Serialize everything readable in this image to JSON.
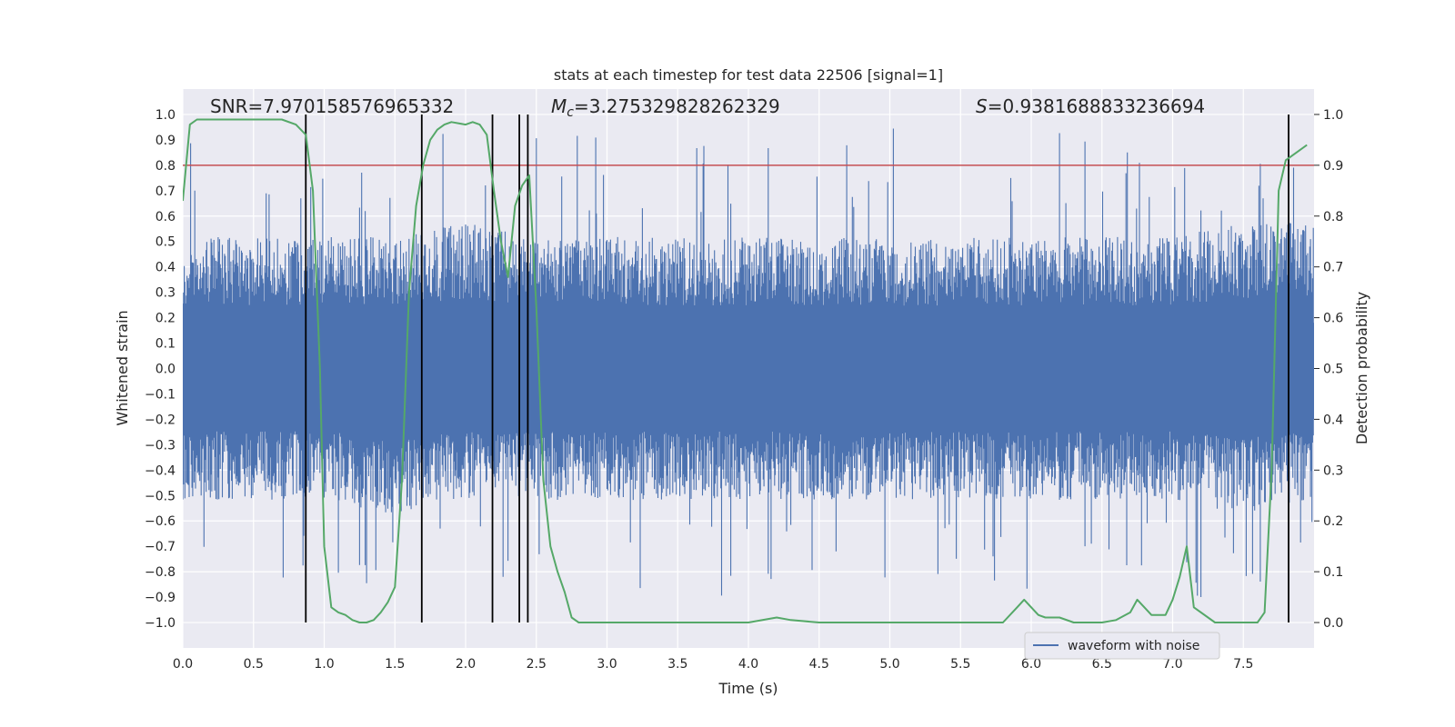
{
  "chart_data": {
    "type": "line",
    "title": "stats at each timestep for test data 22506 [signal=1]",
    "xlabel": "Time (s)",
    "ylabel_left": "Whitened strain",
    "ylabel_right": "Detection probability",
    "xlim": [
      0.0,
      8.0
    ],
    "ylim_left": [
      -1.1,
      1.1
    ],
    "ylim_right": [
      -0.05,
      1.05
    ],
    "xticks": [
      "0.0",
      "0.5",
      "1.0",
      "1.5",
      "2.0",
      "2.5",
      "3.0",
      "3.5",
      "4.0",
      "4.5",
      "5.0",
      "5.5",
      "6.0",
      "6.5",
      "7.0",
      "7.5"
    ],
    "yticks_left": [
      "1.0",
      "0.9",
      "0.8",
      "0.7",
      "0.6",
      "0.5",
      "0.4",
      "0.3",
      "0.2",
      "0.1",
      "0.0",
      "-0.1",
      "-0.2",
      "-0.3",
      "-0.4",
      "-0.5",
      "-0.6",
      "-0.7",
      "-0.8",
      "-0.9",
      "-1.0"
    ],
    "yticks_right": [
      "1.0",
      "0.9",
      "0.8",
      "0.7",
      "0.6",
      "0.5",
      "0.4",
      "0.3",
      "0.2",
      "0.1",
      "0.0"
    ],
    "grid": true,
    "annotations": {
      "snr": "SNR=7.970158576965332",
      "mc": "M",
      "mc_sub": "c",
      "mc_value": "=3.275329828262329",
      "s": "S",
      "s_value": "=0.9381688833236694"
    },
    "legend": {
      "label": "waveform with noise",
      "placement": "lower-right"
    },
    "threshold_right": 0.9,
    "detection_lines_x": [
      0.87,
      1.69,
      2.19,
      2.38,
      2.44,
      7.82
    ],
    "waveform_envelope": {
      "x": [
        0.0,
        0.5,
        1.0,
        1.5,
        2.0,
        2.5,
        3.0,
        3.5,
        4.0,
        4.5,
        5.0,
        5.5,
        6.0,
        6.5,
        7.0,
        7.5,
        8.0
      ],
      "upper": [
        0.45,
        0.45,
        0.45,
        0.45,
        0.5,
        0.45,
        0.45,
        0.45,
        0.45,
        0.45,
        0.45,
        0.45,
        0.45,
        0.45,
        0.45,
        0.5,
        0.5
      ],
      "lower": [
        -0.45,
        -0.45,
        -0.45,
        -0.5,
        -0.45,
        -0.45,
        -0.45,
        -0.45,
        -0.45,
        -0.45,
        -0.45,
        -0.45,
        -0.45,
        -0.45,
        -0.45,
        -0.5,
        -0.45
      ]
    },
    "series": [
      {
        "name": "detection probability",
        "color": "#55a868",
        "x": [
          0.0,
          0.05,
          0.1,
          0.2,
          0.3,
          0.4,
          0.5,
          0.6,
          0.7,
          0.8,
          0.87,
          0.92,
          0.97,
          1.0,
          1.05,
          1.1,
          1.15,
          1.2,
          1.25,
          1.3,
          1.35,
          1.4,
          1.45,
          1.5,
          1.55,
          1.6,
          1.65,
          1.7,
          1.75,
          1.8,
          1.85,
          1.9,
          2.0,
          2.05,
          2.1,
          2.15,
          2.2,
          2.25,
          2.3,
          2.35,
          2.4,
          2.45,
          2.5,
          2.55,
          2.6,
          2.65,
          2.7,
          2.75,
          2.8,
          3.0,
          3.5,
          4.0,
          4.2,
          4.3,
          4.5,
          4.8,
          5.0,
          5.3,
          5.6,
          5.8,
          5.9,
          5.95,
          6.0,
          6.05,
          6.1,
          6.2,
          6.3,
          6.5,
          6.6,
          6.7,
          6.75,
          6.8,
          6.85,
          6.95,
          7.0,
          7.05,
          7.1,
          7.15,
          7.3,
          7.5,
          7.6,
          7.65,
          7.7,
          7.75,
          7.8,
          7.85,
          7.9,
          7.95
        ],
        "values": [
          0.83,
          0.98,
          0.99,
          0.99,
          0.99,
          0.99,
          0.99,
          0.99,
          0.99,
          0.98,
          0.96,
          0.85,
          0.5,
          0.15,
          0.03,
          0.02,
          0.015,
          0.005,
          0.0,
          0.0,
          0.005,
          0.02,
          0.04,
          0.07,
          0.28,
          0.65,
          0.82,
          0.9,
          0.95,
          0.97,
          0.98,
          0.985,
          0.98,
          0.985,
          0.98,
          0.96,
          0.85,
          0.75,
          0.68,
          0.82,
          0.86,
          0.88,
          0.62,
          0.28,
          0.15,
          0.1,
          0.06,
          0.01,
          0.0,
          0.0,
          0.0,
          0.0,
          0.01,
          0.005,
          0.0,
          0.0,
          0.0,
          0.0,
          0.0,
          0.0,
          0.03,
          0.045,
          0.03,
          0.015,
          0.01,
          0.01,
          0.0,
          0.0,
          0.005,
          0.02,
          0.045,
          0.03,
          0.015,
          0.015,
          0.045,
          0.09,
          0.15,
          0.03,
          0.0,
          0.0,
          0.0,
          0.02,
          0.3,
          0.85,
          0.91,
          0.92,
          0.93,
          0.94
        ]
      }
    ]
  }
}
